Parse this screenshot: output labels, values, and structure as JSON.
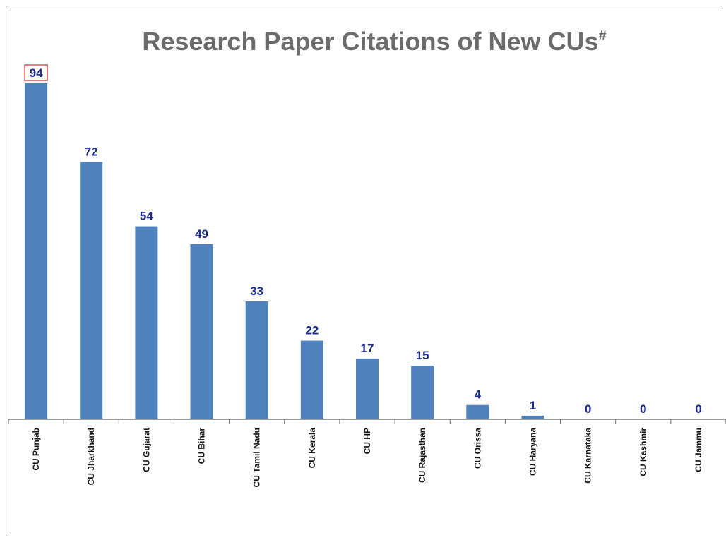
{
  "chart_data": {
    "type": "bar",
    "title": "Research Paper Citations of New CUs",
    "title_superscript": "#",
    "xlabel": "",
    "ylabel": "",
    "categories": [
      "CU Punjab",
      "CU Jharkhand",
      "CU Gujarat",
      "CU Bihar",
      "CU Tamil Nadu",
      "CU Kerala",
      "CU HP",
      "CU Rajasthan",
      "CU Orissa",
      "CU Haryana",
      "CU Karnataka",
      "CU Kashmir",
      "CU Jammu"
    ],
    "values": [
      94,
      72,
      54,
      49,
      33,
      22,
      17,
      15,
      4,
      1,
      0,
      0,
      0
    ],
    "ylim": [
      0,
      94
    ],
    "grid": false,
    "legend": "none",
    "bar_color": "#4f81bd",
    "label_color": "#1a2a8c",
    "highlighted_label_index": 0,
    "highlight_color": "#e05050"
  }
}
